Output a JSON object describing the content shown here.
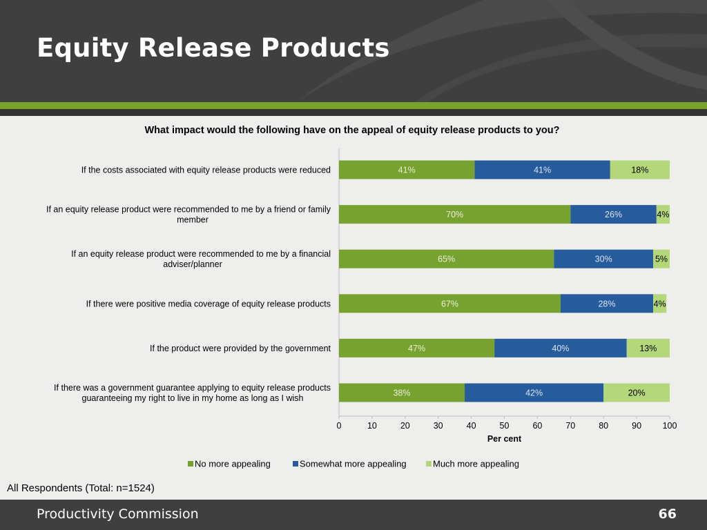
{
  "slide": {
    "title": "Equity Release Products",
    "note": "All Respondents (Total: n=1524)",
    "footer_org": "Productivity Commission",
    "page_number": "66"
  },
  "chart_data": {
    "type": "bar",
    "orientation": "horizontal",
    "stacked": true,
    "title": "What impact would the following have on the appeal of equity release products to you?",
    "xlabel": "Per cent",
    "ylabel": "",
    "xlim": [
      0,
      100
    ],
    "xticks": [
      0,
      10,
      20,
      30,
      40,
      50,
      60,
      70,
      80,
      90,
      100
    ],
    "grid": false,
    "legend_position": "bottom",
    "categories": [
      [
        "If the costs associated with equity release products were reduced"
      ],
      [
        "If an equity release product were recommended to me by a friend or family",
        "member"
      ],
      [
        "If an equity release product were recommended to me by a financial",
        "adviser/planner"
      ],
      [
        "If there were positive media coverage of equity release products"
      ],
      [
        "If the product were provided by the government"
      ],
      [
        "If there was a government guarantee applying to equity release products",
        "guaranteeing my right to live in my home as long as I wish"
      ]
    ],
    "series": [
      {
        "name": "No more appealing",
        "color": "#77a22f",
        "label_color": "#e9f0db",
        "values": [
          41,
          70,
          65,
          67,
          47,
          38
        ]
      },
      {
        "name": "Somewhat more appealing",
        "color": "#265b9c",
        "label_color": "#dbe4f0",
        "values": [
          41,
          26,
          30,
          28,
          40,
          42
        ]
      },
      {
        "name": "Much more appealing",
        "color": "#b5d77c",
        "label_color": "#000000",
        "values": [
          18,
          4,
          5,
          4,
          13,
          20
        ]
      }
    ],
    "data_label_suffix": "%"
  }
}
